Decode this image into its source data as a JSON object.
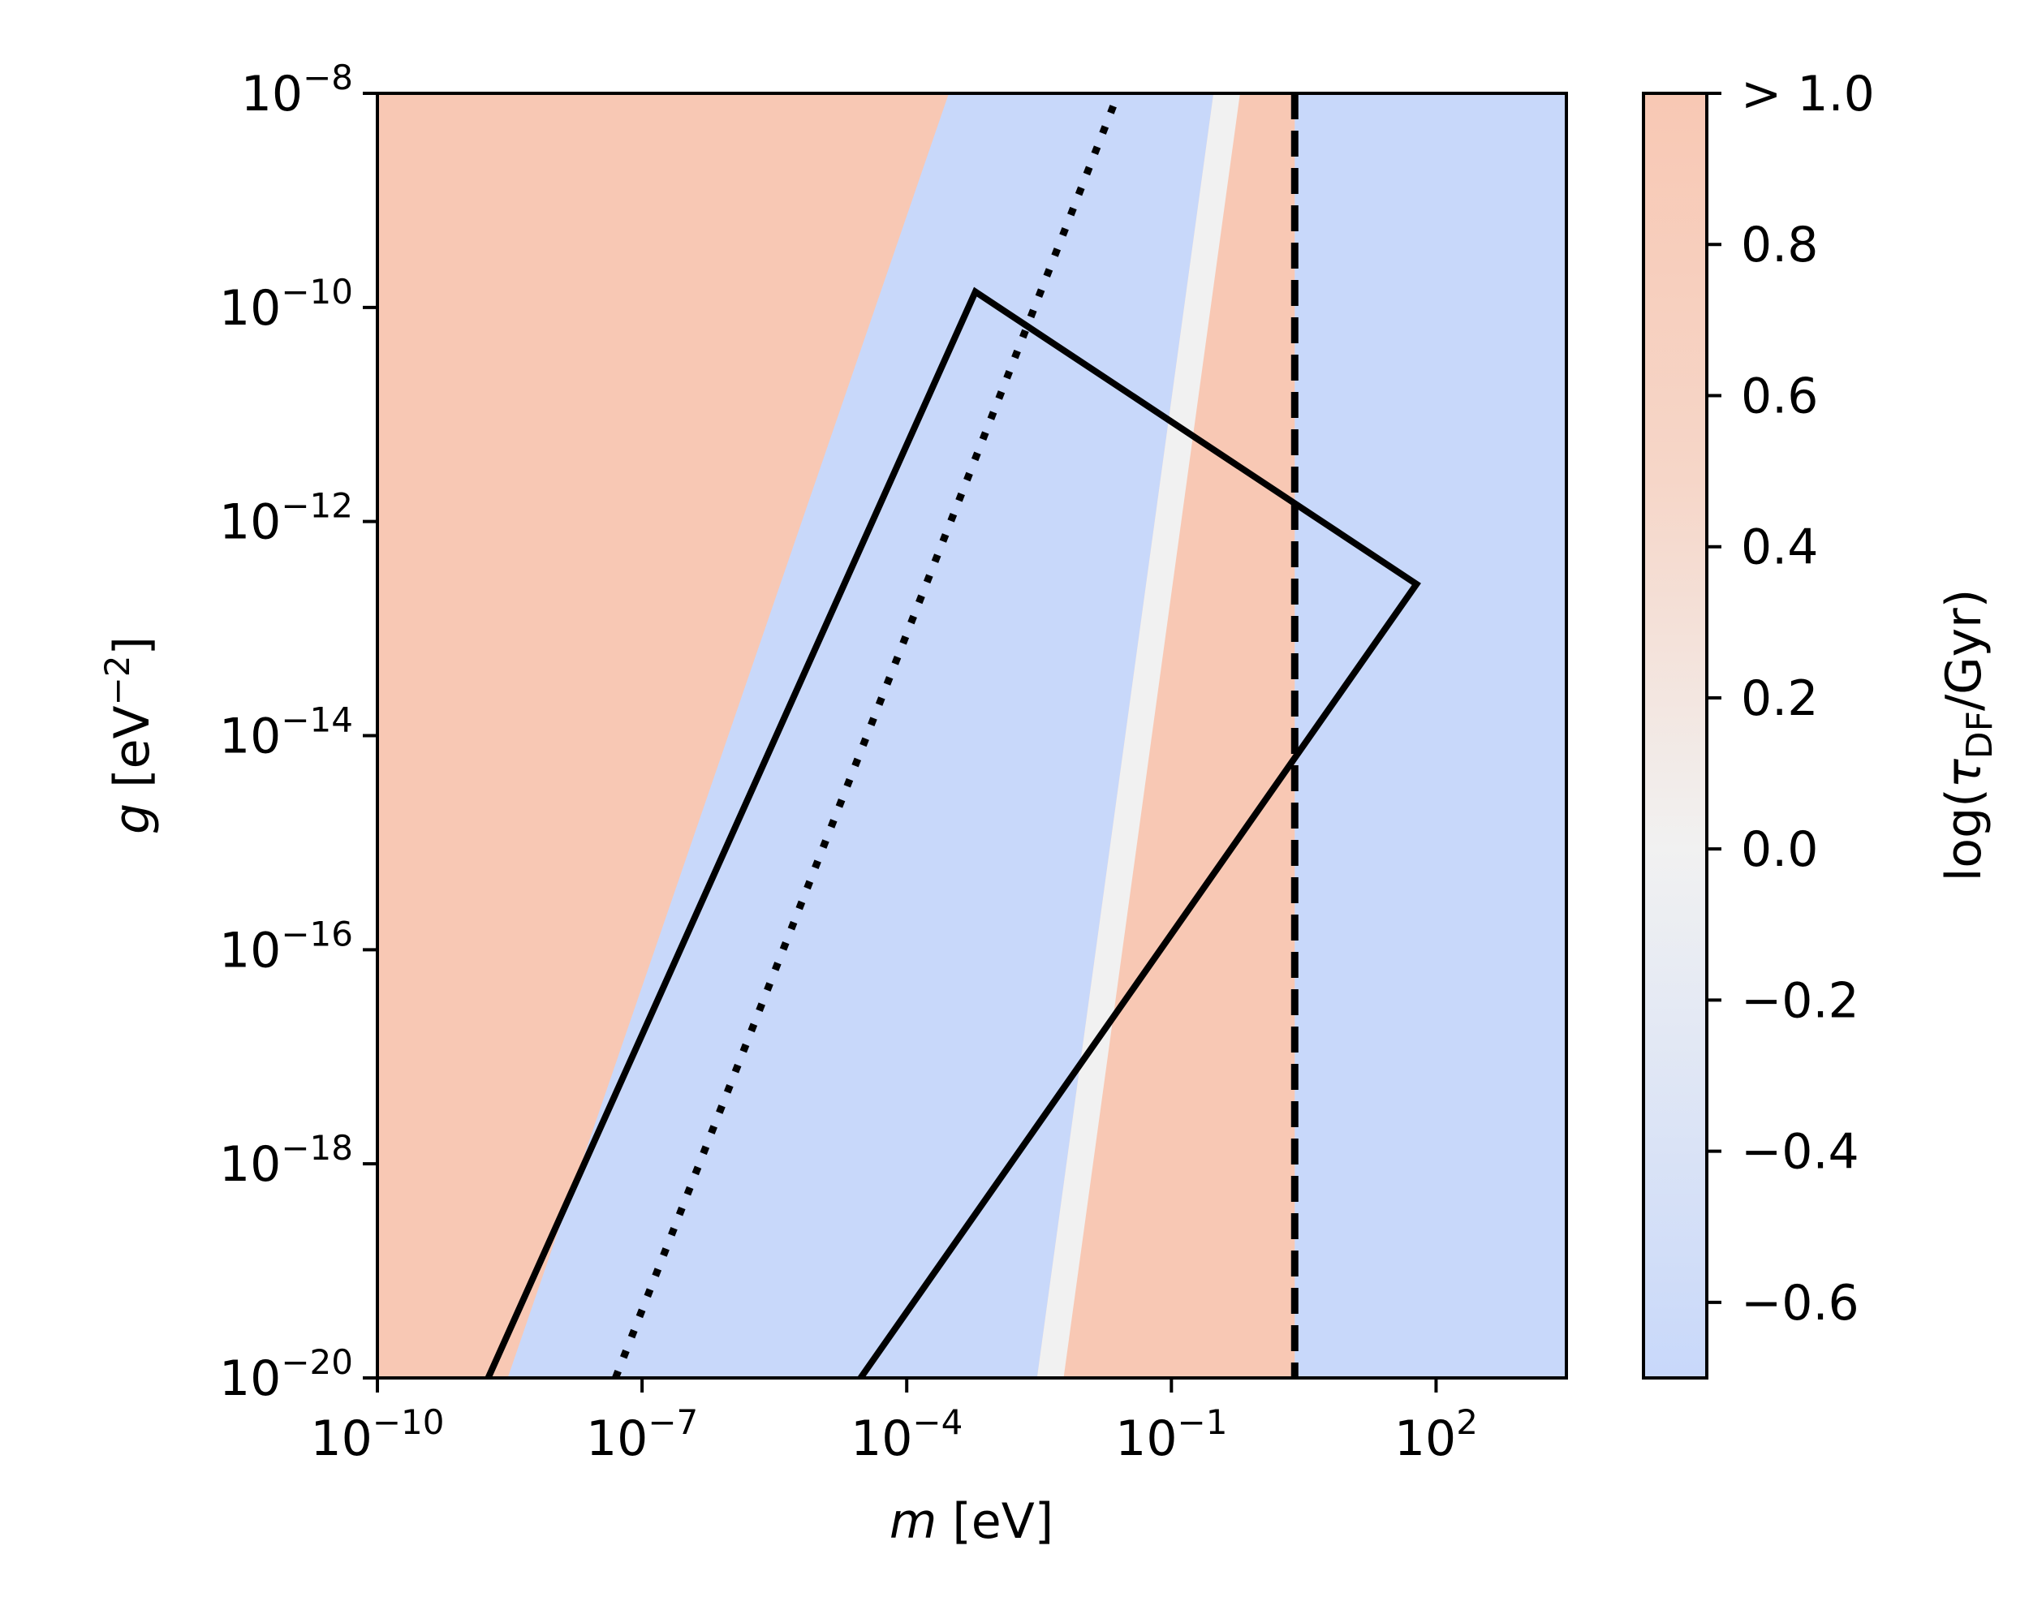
{
  "chart_data": {
    "type": "heatmap",
    "xlabel_var": "m",
    "xlabel_unit": " [eV]",
    "ylabel_var": "g",
    "ylabel_unit": " [eV",
    "ylabel_unit_sup": "−2",
    "ylabel_unit_end": "]",
    "x_scale": "log",
    "y_scale": "log",
    "xlim": [
      1e-10,
      3000
    ],
    "ylim": [
      1e-20,
      1e-08
    ],
    "x_ticks": [
      {
        "value": 1e-10,
        "base": "10",
        "exp": "−10"
      },
      {
        "value": 1e-07,
        "base": "10",
        "exp": "−7"
      },
      {
        "value": 0.0001,
        "base": "10",
        "exp": "−4"
      },
      {
        "value": 0.1,
        "base": "10",
        "exp": "−1"
      },
      {
        "value": 100,
        "base": "10",
        "exp": "2"
      }
    ],
    "y_ticks": [
      {
        "value": 1e-20,
        "base": "10",
        "exp": "−20"
      },
      {
        "value": 1e-18,
        "base": "10",
        "exp": "−18"
      },
      {
        "value": 1e-16,
        "base": "10",
        "exp": "−16"
      },
      {
        "value": 1e-14,
        "base": "10",
        "exp": "−14"
      },
      {
        "value": 1e-12,
        "base": "10",
        "exp": "−12"
      },
      {
        "value": 1e-10,
        "base": "10",
        "exp": "−10"
      },
      {
        "value": 1e-08,
        "base": "10",
        "exp": "−8"
      }
    ],
    "colorbar": {
      "label_pre": "log(",
      "label_symbol": "τ",
      "label_sub": "DF",
      "label_post": "/Gyr)",
      "range": [
        -0.7,
        1.0
      ],
      "ticks": [
        {
          "value": 1.0,
          "label": "> 1.0"
        },
        {
          "value": 0.8,
          "label": "0.8"
        },
        {
          "value": 0.6,
          "label": "0.6"
        },
        {
          "value": 0.4,
          "label": "0.4"
        },
        {
          "value": 0.2,
          "label": "0.2"
        },
        {
          "value": 0.0,
          "label": "0.0"
        },
        {
          "value": -0.2,
          "label": "−0.2"
        },
        {
          "value": -0.4,
          "label": "−0.4"
        },
        {
          "value": -0.6,
          "label": "−0.6"
        }
      ],
      "color_low": "#c8d8fa",
      "color_mid": "#f1f1f1",
      "color_high": "#f8c8b4"
    },
    "regions": [
      {
        "value": 1.0,
        "boundary_g": 1e-20,
        "boundary_m_at_g_min": 3e-09,
        "boundary_m_at_g_max": 0.0003
      },
      {
        "value": -0.6,
        "note_m_upper_at_g_min": 0.003,
        "note_m_upper_at_g_max": 0.3
      },
      {
        "value": 1.0,
        "m_upper": 2.5
      },
      {
        "value": -0.6,
        "m_lower": 2.5
      }
    ],
    "polygon_solid": [
      {
        "m": 1.8e-09,
        "g": 1e-20
      },
      {
        "m": 0.0006,
        "g": 1.4e-10
      },
      {
        "m": 60,
        "g": 2.6e-13
      },
      {
        "m": 3e-05,
        "g": 1e-20
      }
    ],
    "line_dotted": [
      {
        "m": 5e-08,
        "g": 1e-20
      },
      {
        "m": 0.025,
        "g": 1e-08
      }
    ],
    "line_dashed_vertical": {
      "m": 2.5
    }
  }
}
